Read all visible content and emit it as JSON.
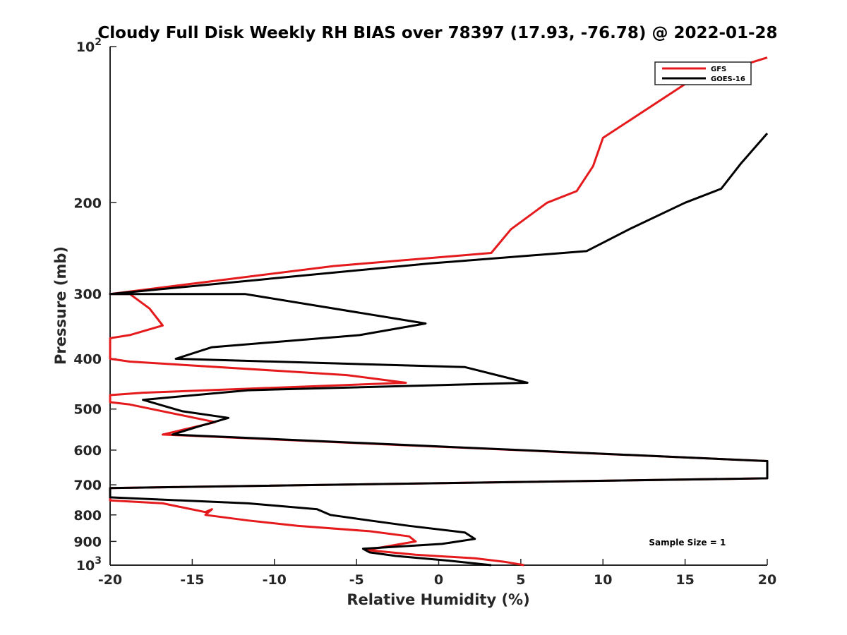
{
  "chart_data": {
    "type": "line",
    "title": "Cloudy Full Disk Weekly RH BIAS over 78397 (17.93, -76.78) @ 2022-01-28",
    "xlabel": "Relative Humidity (%)",
    "ylabel": "Pressure (mb)",
    "xlim": [
      -20,
      20
    ],
    "ylim": [
      1000,
      100
    ],
    "yscale": "log",
    "y_reversed": true,
    "grid": false,
    "x_ticks": [
      "-20",
      "-15",
      "-10",
      "-5",
      "0",
      "5",
      "10",
      "15",
      "20"
    ],
    "x_tick_values": [
      -20,
      -15,
      -10,
      -5,
      0,
      5,
      10,
      15,
      20
    ],
    "y_ticks": [
      {
        "value": 100,
        "base": "10",
        "exp": "2"
      },
      {
        "value": 200,
        "base": "200",
        "exp": ""
      },
      {
        "value": 300,
        "base": "300",
        "exp": ""
      },
      {
        "value": 400,
        "base": "400",
        "exp": ""
      },
      {
        "value": 500,
        "base": "500",
        "exp": ""
      },
      {
        "value": 600,
        "base": "600",
        "exp": ""
      },
      {
        "value": 700,
        "base": "700",
        "exp": ""
      },
      {
        "value": 800,
        "base": "800",
        "exp": ""
      },
      {
        "value": 900,
        "base": "900",
        "exp": ""
      },
      {
        "value": 1000,
        "base": "10",
        "exp": "3"
      }
    ],
    "legend_position": "top-right",
    "series": [
      {
        "name": "GFS",
        "color": "#e41a1c",
        "points": [
          [
            20,
            105
          ],
          [
            15.2,
            117
          ],
          [
            10,
            150
          ],
          [
            9.4,
            170
          ],
          [
            8.4,
            190
          ],
          [
            6.6,
            200
          ],
          [
            4.4,
            225
          ],
          [
            3.2,
            250
          ],
          [
            -6.4,
            265
          ],
          [
            -20,
            300
          ],
          [
            -18.8,
            300
          ],
          [
            -17.6,
            320
          ],
          [
            -16.8,
            345
          ],
          [
            -18.8,
            360
          ],
          [
            -20,
            365
          ],
          [
            -20,
            400
          ],
          [
            -18.8,
            405
          ],
          [
            -5.6,
            430
          ],
          [
            -2,
            445
          ],
          [
            -18,
            465
          ],
          [
            -20,
            470
          ],
          [
            -20,
            485
          ],
          [
            -18.8,
            490
          ],
          [
            -13.6,
            530
          ],
          [
            -16.8,
            560
          ],
          [
            20,
            630
          ],
          [
            20,
            680
          ],
          [
            -20,
            710
          ],
          [
            -20,
            750
          ],
          [
            -16.8,
            760
          ],
          [
            -14.2,
            790
          ],
          [
            -13.8,
            780
          ],
          [
            -14.2,
            800
          ],
          [
            -11.6,
            820
          ],
          [
            -8.6,
            840
          ],
          [
            -4.2,
            860
          ],
          [
            -1.8,
            880
          ],
          [
            -1.4,
            900
          ],
          [
            -4.4,
            935
          ],
          [
            -1.4,
            955
          ],
          [
            2.2,
            970
          ],
          [
            4,
            985
          ],
          [
            5.2,
            1000
          ]
        ]
      },
      {
        "name": "GOES-16",
        "color": "#000000",
        "points": [
          [
            20,
            147
          ],
          [
            18.4,
            168
          ],
          [
            17.2,
            188
          ],
          [
            15,
            200
          ],
          [
            11.6,
            225
          ],
          [
            9,
            248
          ],
          [
            -0.6,
            262
          ],
          [
            -20,
            300
          ],
          [
            -11.8,
            300
          ],
          [
            -0.8,
            342
          ],
          [
            -4.8,
            360
          ],
          [
            -13.8,
            380
          ],
          [
            -16,
            400
          ],
          [
            1.6,
            415
          ],
          [
            5.4,
            445
          ],
          [
            -11.6,
            460
          ],
          [
            -18,
            480
          ],
          [
            -15.6,
            505
          ],
          [
            -12.8,
            520
          ],
          [
            -14.6,
            540
          ],
          [
            -16.2,
            560
          ],
          [
            20,
            630
          ],
          [
            20,
            680
          ],
          [
            -20,
            710
          ],
          [
            -20,
            740
          ],
          [
            -11.6,
            760
          ],
          [
            -7.4,
            780
          ],
          [
            -6.6,
            800
          ],
          [
            -4.2,
            820
          ],
          [
            -1.8,
            840
          ],
          [
            1.6,
            865
          ],
          [
            2.2,
            890
          ],
          [
            0.2,
            910
          ],
          [
            -4.6,
            930
          ],
          [
            -4.2,
            945
          ],
          [
            -2.6,
            960
          ],
          [
            0.6,
            980
          ],
          [
            3.2,
            1000
          ]
        ]
      }
    ],
    "annotations": [
      {
        "text": "Sample Size = 1",
        "x": 12.8,
        "y": 905
      }
    ]
  }
}
